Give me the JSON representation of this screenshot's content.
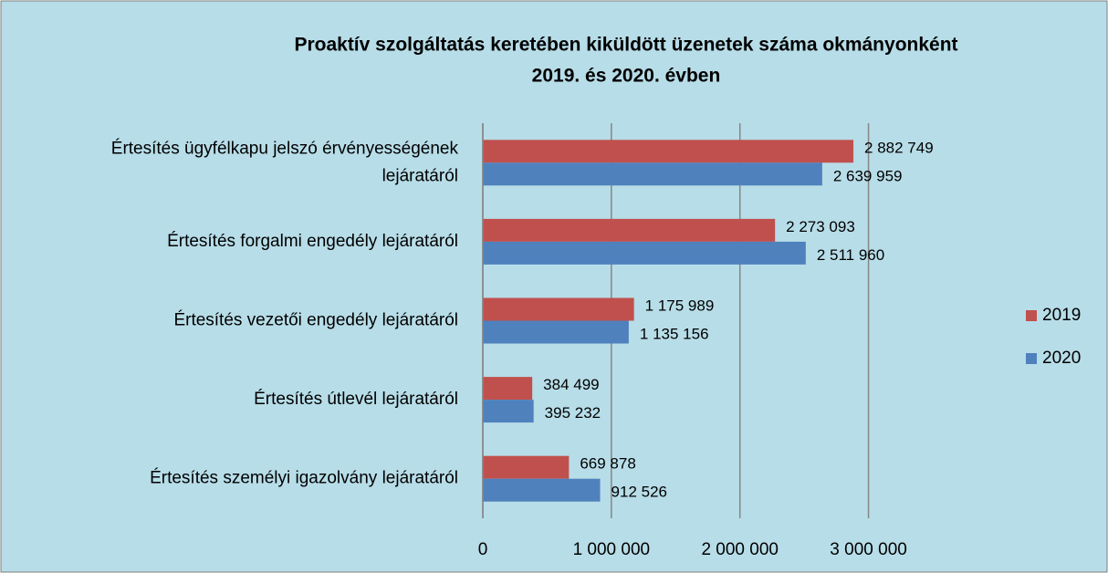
{
  "chart_data": {
    "type": "bar",
    "orientation": "horizontal",
    "title": [
      "Proaktív szolgáltatás keretében kiküldött üzenetek száma  okmányonként",
      "2019. és 2020. évben"
    ],
    "categories": [
      "Értesítés ügyfélkapu jelszó érvényességének\nlejáratáról",
      "Értesítés forgalmi engedély lejáratáról",
      "Értesítés vezetői engedély lejáratáról",
      "Értesítés útlevél lejáratáról",
      "Értesítés személyi igazolvány lejáratáról"
    ],
    "series": [
      {
        "name": "2019",
        "color": "#c0504d",
        "values": [
          2882749,
          2273093,
          1175989,
          384499,
          669878
        ],
        "value_labels": [
          "2 882 749",
          "2 273 093",
          "1 175 989",
          "384 499",
          "669 878"
        ]
      },
      {
        "name": "2020",
        "color": "#4f81bd",
        "values": [
          2639959,
          2511960,
          1135156,
          395232,
          912526
        ],
        "value_labels": [
          "2 639 959",
          "2 511 960",
          "1 135 156",
          "395 232",
          "912 526"
        ]
      }
    ],
    "xlim": [
      0,
      3500000
    ],
    "xticks": [
      0,
      {
        "value": 1000000,
        "label": "1 000 000"
      },
      {
        "value": 2000000,
        "label": "2 000 000"
      },
      {
        "value": 3000000,
        "label": "3 000 000"
      }
    ],
    "grid": true,
    "legend": "right"
  }
}
